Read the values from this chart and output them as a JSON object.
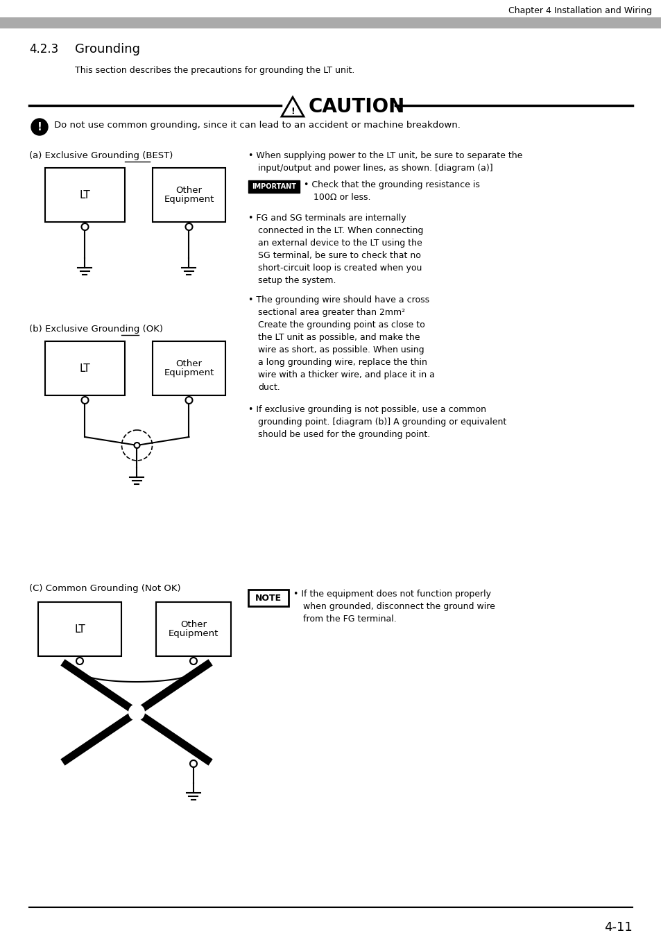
{
  "header_text": "Chapter 4 Installation and Wiring",
  "header_bar_color": "#aaaaaa",
  "section_number": "4.2.3",
  "section_title": "Grounding",
  "intro_text": "This section describes the precautions for grounding the LT unit.",
  "caution_text": "CAUTION",
  "caution_warning": "Do not use common grounding, since it can lead to an accident or machine breakdown.",
  "page_number": "4-11",
  "bg_color": "#ffffff",
  "text_color": "#000000"
}
